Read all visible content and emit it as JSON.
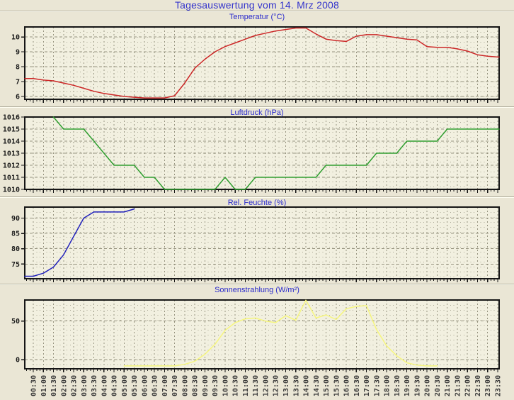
{
  "header": {
    "title": "Tagesauswertung vom 14. Mrz 2008"
  },
  "colors": {
    "page_bg": "#eae6d5",
    "plot_bg": "#f2f0e0",
    "title_text": "#3434cc",
    "chart_title_text": "#2a2acc",
    "frame": "#161616",
    "grid_major": "#96937f",
    "grid_minor": "#aaa795",
    "axis_text": "#1a1a1a",
    "time_text": "#3a3a3a",
    "temperature_line": "#cc2727",
    "pressure_line": "#2f9e2f",
    "humidity_line": "#2121bb",
    "radiation_line": "#f6f67e"
  },
  "x_labels": [
    "00:30",
    "01:00",
    "01:30",
    "02:00",
    "02:30",
    "03:00",
    "03:30",
    "04:00",
    "04:30",
    "05:00",
    "05:30",
    "06:00",
    "06:30",
    "07:00",
    "07:30",
    "08:00",
    "08:30",
    "09:00",
    "09:30",
    "10:00",
    "10:30",
    "11:00",
    "11:30",
    "12:00",
    "12:30",
    "13:00",
    "13:30",
    "14:00",
    "14:30",
    "15:00",
    "15:30",
    "16:00",
    "16:30",
    "17:00",
    "17:30",
    "18:00",
    "18:30",
    "19:00",
    "19:30",
    "20:00",
    "20:30",
    "21:00",
    "21:30",
    "22:00",
    "22:30",
    "23:00",
    "23:30"
  ],
  "chart_data": [
    {
      "type": "line",
      "title": "Temperatur (°C)",
      "color": "#cc2727",
      "ylim": [
        5.81,
        10.67
      ],
      "yticks": [
        6,
        7,
        8,
        9,
        10
      ],
      "values": [
        7.2,
        7.1,
        7.05,
        6.9,
        6.75,
        6.55,
        6.35,
        6.2,
        6.1,
        6.0,
        5.95,
        5.9,
        5.9,
        5.9,
        6.05,
        6.9,
        7.9,
        8.5,
        9.0,
        9.35,
        9.6,
        9.85,
        10.1,
        10.25,
        10.4,
        10.5,
        10.6,
        10.6,
        10.2,
        9.85,
        9.75,
        9.7,
        10.05,
        10.15,
        10.15,
        10.05,
        9.95,
        9.85,
        9.8,
        9.35,
        9.3,
        9.3,
        9.2,
        9.05,
        8.8,
        8.7,
        8.65
      ]
    },
    {
      "type": "line",
      "title": "Luftdruck (hPa)",
      "color": "#2f9e2f",
      "ylim": [
        1010,
        1016
      ],
      "yticks": [
        1010,
        1011,
        1012,
        1013,
        1014,
        1015,
        1016
      ],
      "values": [
        null,
        null,
        1016,
        1015,
        1015,
        1015,
        1014,
        1013,
        1012,
        1012,
        1012,
        1011,
        1011,
        1010,
        1010,
        1010,
        1010,
        1010,
        1010,
        1011,
        1010,
        1010,
        1011,
        1011,
        1011,
        1011,
        1011,
        1011,
        1011,
        1012,
        1012,
        1012,
        1012,
        1012,
        1013,
        1013,
        1013,
        1014,
        1014,
        1014,
        1014,
        1015,
        1015,
        1015,
        1015,
        1015,
        1015
      ]
    },
    {
      "type": "line",
      "title": "Rel. Feuchte (%)",
      "color": "#2121bb",
      "ylim": [
        70.2,
        93.6
      ],
      "yticks": [
        75,
        80,
        85,
        90
      ],
      "values": [
        71,
        72,
        74,
        78,
        84,
        90,
        92,
        92,
        92,
        92,
        93,
        null,
        null,
        null,
        null,
        null,
        null,
        null,
        null,
        null,
        null,
        null,
        null,
        null,
        null,
        null,
        null,
        null,
        null,
        null,
        null,
        null,
        null,
        null,
        null,
        null,
        null,
        null,
        null,
        null,
        null,
        null,
        null,
        null,
        null,
        null,
        null
      ]
    },
    {
      "type": "line",
      "title": "Sonnenstrahlung (W/m²)",
      "color": "#f6f67e",
      "ylim": [
        -11.8,
        77.3
      ],
      "yticks": [
        0,
        50
      ],
      "values": [
        null,
        null,
        null,
        null,
        null,
        null,
        null,
        null,
        null,
        -8,
        -8,
        -8,
        -8,
        -8,
        -8,
        -6,
        -2,
        7,
        20,
        38,
        48,
        53,
        54,
        50,
        48,
        57,
        51,
        77,
        54,
        58,
        52,
        66,
        69,
        70,
        39,
        18,
        5,
        -4,
        -7,
        -8,
        -8,
        null,
        null,
        null,
        null,
        null,
        null
      ]
    }
  ]
}
